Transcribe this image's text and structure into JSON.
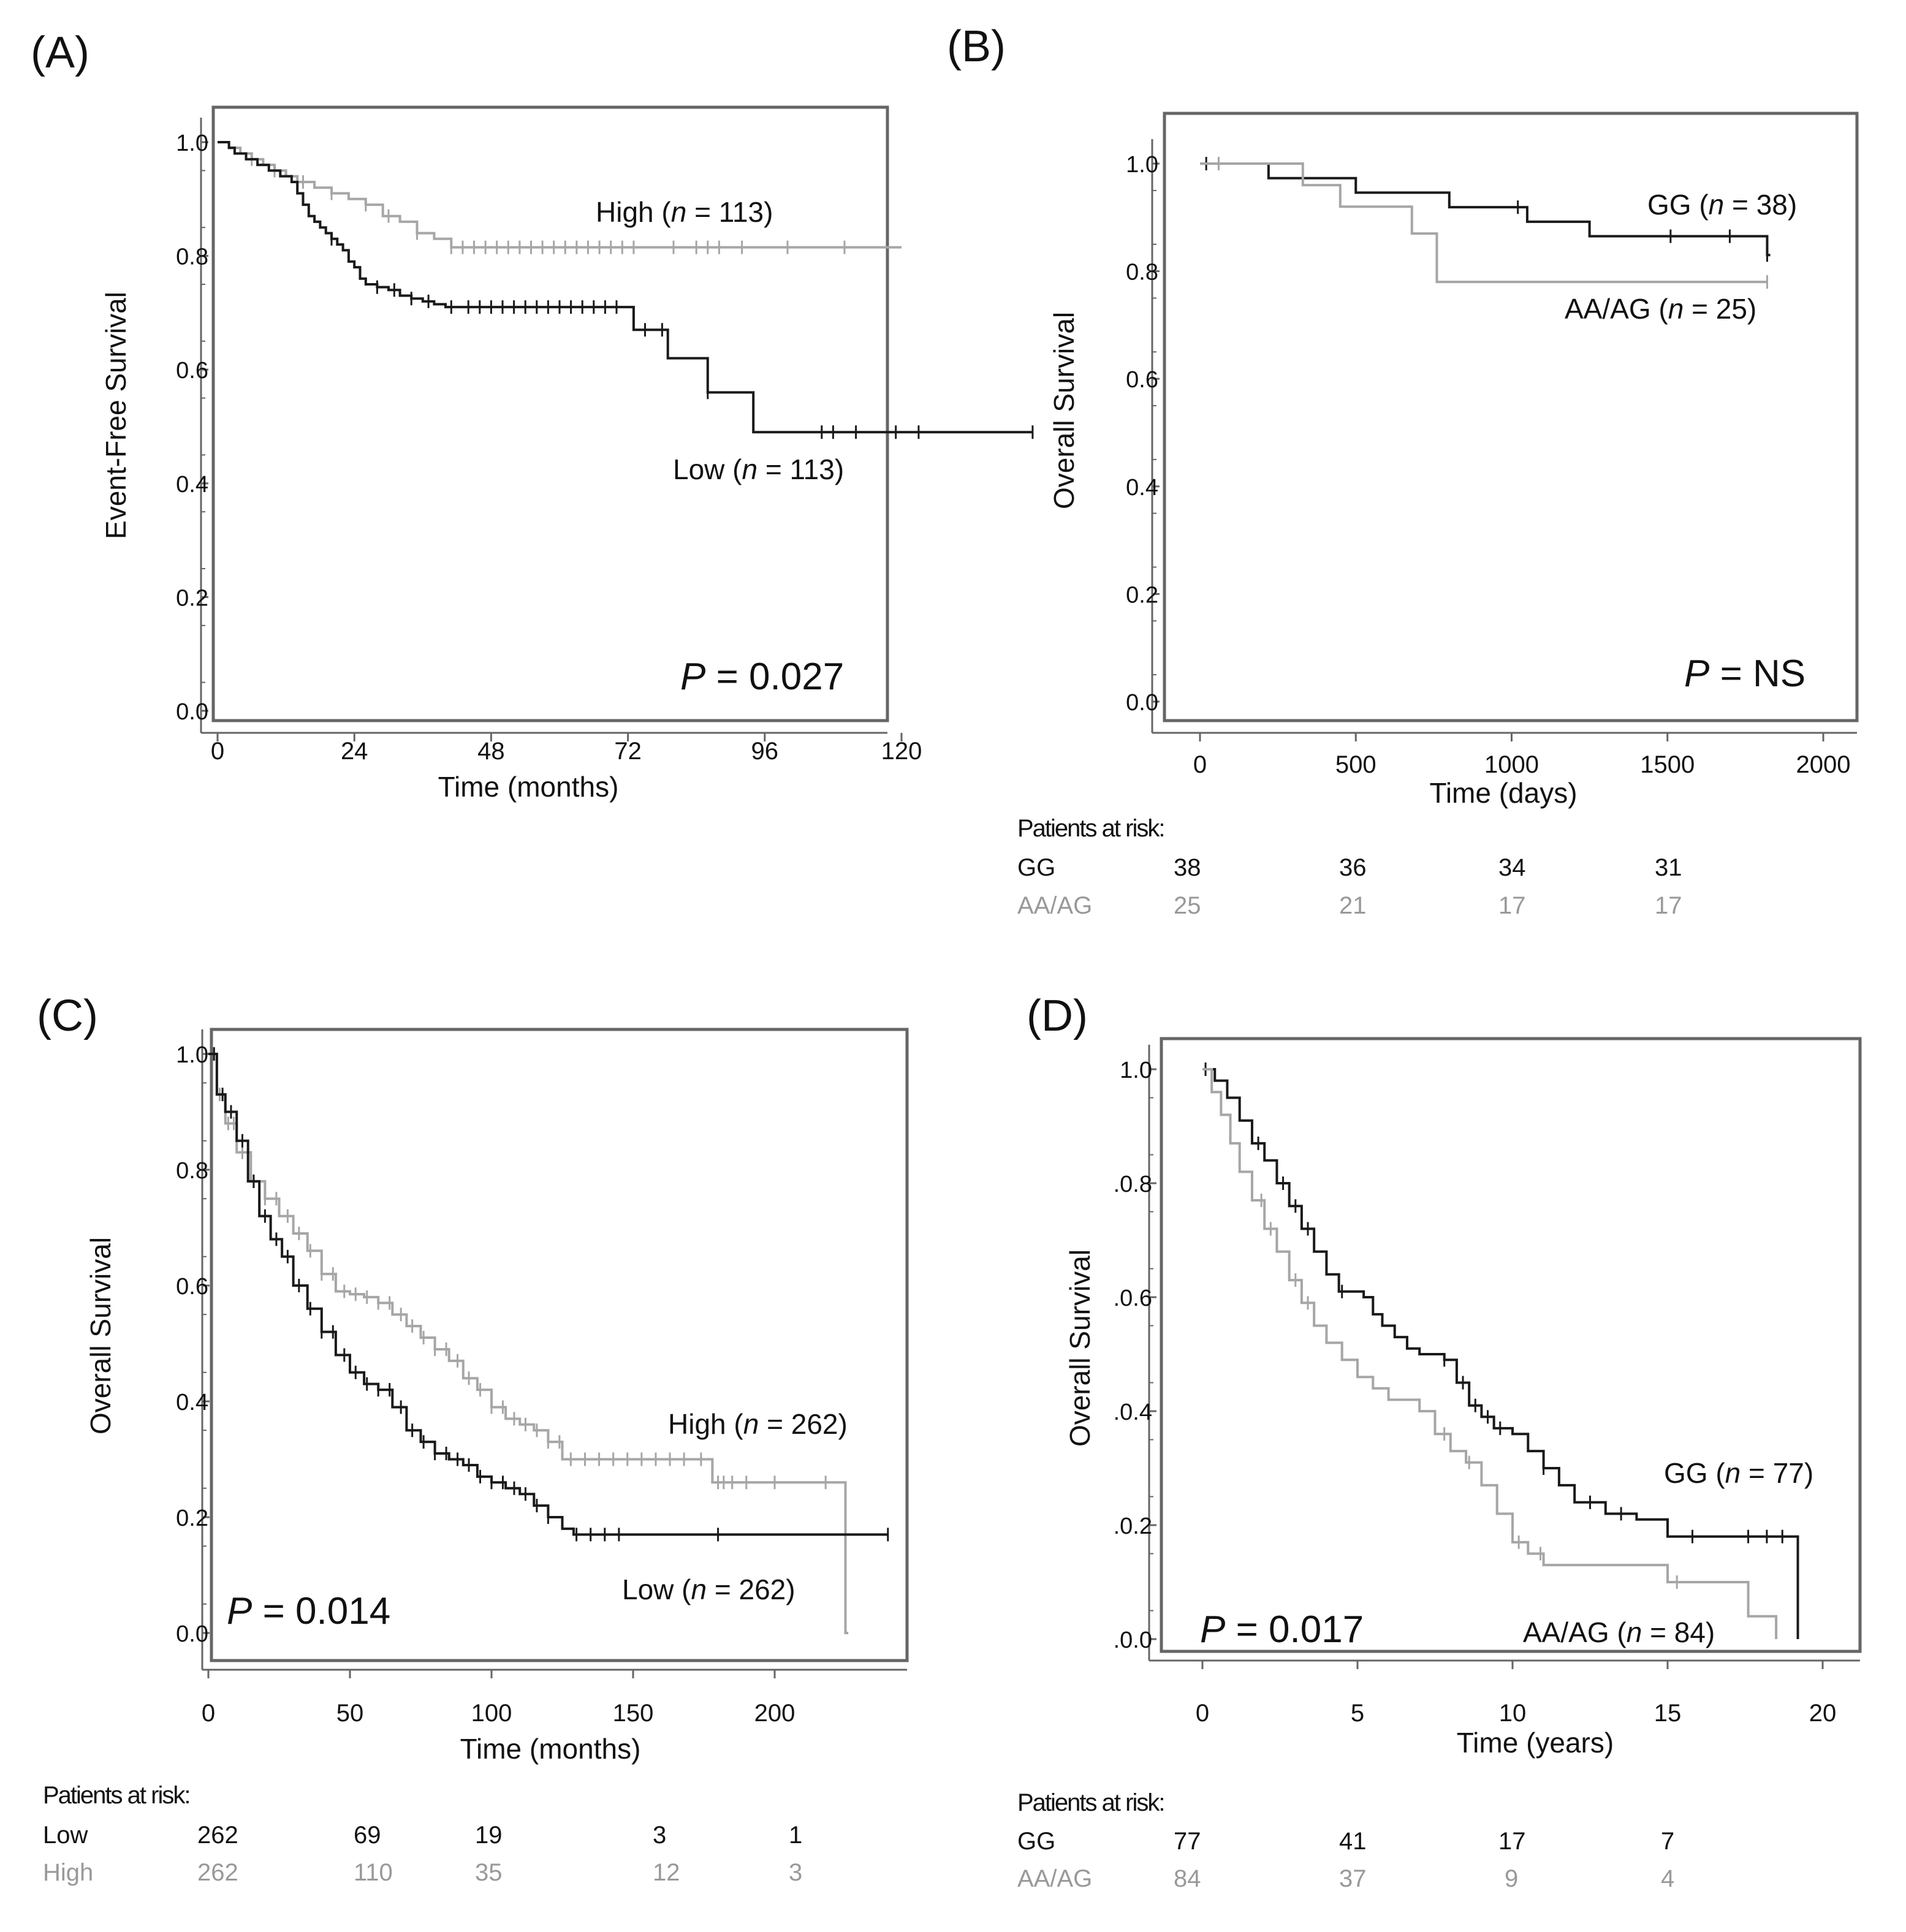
{
  "panels": [
    {
      "letter": "(A)",
      "ylabel": "Event-Free Survival",
      "xlabel": "Time (months)",
      "pvalue_prefix": "P",
      "pvalue_rest": " = 0.027",
      "xticks": [
        "0",
        "24",
        "48",
        "72",
        "96",
        "120"
      ],
      "yticks": [
        "0.0",
        "0.2",
        "0.4",
        "0.6",
        "0.8",
        "1.0"
      ],
      "series_labels": [
        {
          "group": "High",
          "n": "113"
        },
        {
          "group": "Low",
          "n": "113"
        }
      ]
    },
    {
      "letter": "(B)",
      "ylabel": "Overall Survival",
      "xlabel": "Time (days)",
      "pvalue_prefix": "P",
      "pvalue_rest": " = NS",
      "xticks": [
        "0",
        "500",
        "1000",
        "1500",
        "2000"
      ],
      "yticks": [
        "0.0",
        "0.2",
        "0.4",
        "0.6",
        "0.8",
        "1.0"
      ],
      "series_labels": [
        {
          "group": "GG",
          "n": "38"
        },
        {
          "group": "AA/AG",
          "n": "25"
        }
      ],
      "risk_title": "Patients at risk:",
      "risk_rows": [
        {
          "group": "GG",
          "values": [
            "38",
            "36",
            "34",
            "31"
          ]
        },
        {
          "group": "AA/AG",
          "values": [
            "25",
            "21",
            "17",
            "17"
          ]
        }
      ]
    },
    {
      "letter": "(C)",
      "ylabel": "Overall Survival",
      "xlabel": "Time (months)",
      "pvalue_prefix": "P",
      "pvalue_rest": " = 0.014",
      "xticks": [
        "0",
        "50",
        "100",
        "150",
        "200"
      ],
      "yticks": [
        "0.0",
        "0.2",
        "0.4",
        "0.6",
        "0.8",
        "1.0"
      ],
      "series_labels": [
        {
          "group": "High",
          "n": "262"
        },
        {
          "group": "Low",
          "n": "262"
        }
      ],
      "risk_title": "Patients at risk:",
      "risk_rows": [
        {
          "group": "Low",
          "values": [
            "262",
            "69",
            "19",
            "3",
            "1"
          ]
        },
        {
          "group": "High",
          "values": [
            "262",
            "110",
            "35",
            "12",
            "3"
          ]
        }
      ]
    },
    {
      "letter": "(D)",
      "ylabel": "Overall Survival",
      "xlabel": "Time (years)",
      "pvalue_prefix": "P",
      "pvalue_rest": " = 0.017",
      "xticks": [
        "0",
        "5",
        "10",
        "15",
        "20"
      ],
      "yticks": [
        ".0.0",
        ".0.2",
        ".0.4",
        ".0.6",
        ".0.8",
        "1.0"
      ],
      "series_labels": [
        {
          "group": "GG",
          "n": "77"
        },
        {
          "group": "AA/AG",
          "n": "84"
        }
      ],
      "risk_title": "Patients at risk:",
      "risk_rows": [
        {
          "group": "GG",
          "values": [
            "77",
            "41",
            "17",
            "7"
          ]
        },
        {
          "group": "AA/AG",
          "values": [
            "84",
            "37",
            "9",
            "4"
          ]
        }
      ]
    }
  ],
  "colors": {
    "dark": "#1a1a1a",
    "light": "#a6a6a6",
    "frame": "#666666"
  },
  "chart_data": [
    {
      "type": "line",
      "title": "",
      "xlabel": "Time (months)",
      "ylabel": "Event-Free Survival",
      "xlim": [
        0,
        144
      ],
      "ylim": [
        0,
        1
      ],
      "xticks": [
        0,
        24,
        48,
        72,
        96,
        120
      ],
      "yticks": [
        0,
        0.2,
        0.4,
        0.6,
        0.8,
        1.0
      ],
      "grid": false,
      "step": true,
      "series": [
        {
          "name": "High (n = 113)",
          "color": "light",
          "x": [
            0,
            2,
            4,
            6,
            8,
            10,
            12,
            14,
            17,
            20,
            23,
            26,
            29,
            32,
            35,
            38,
            41,
            120
          ],
          "y": [
            1.0,
            0.99,
            0.98,
            0.97,
            0.96,
            0.95,
            0.94,
            0.93,
            0.92,
            0.91,
            0.9,
            0.89,
            0.87,
            0.86,
            0.84,
            0.83,
            0.815,
            0.815
          ],
          "censor_x": [
            6,
            10,
            15,
            20,
            26,
            30,
            35,
            41,
            43,
            45,
            47,
            49,
            51,
            53,
            55,
            57,
            59,
            61,
            63,
            65,
            67,
            69,
            71,
            73,
            80,
            84,
            86,
            88,
            92,
            100,
            110
          ]
        },
        {
          "name": "Low (n = 113)",
          "color": "dark",
          "x": [
            0,
            2,
            3,
            5,
            7,
            9,
            11,
            13,
            14,
            15,
            16,
            17,
            18,
            19,
            20,
            21,
            22,
            23,
            24,
            25,
            26,
            28,
            30,
            32,
            34,
            36,
            38,
            40,
            73,
            79,
            81,
            86,
            94,
            143
          ],
          "y": [
            1.0,
            0.99,
            0.98,
            0.97,
            0.96,
            0.95,
            0.94,
            0.93,
            0.91,
            0.89,
            0.87,
            0.86,
            0.85,
            0.84,
            0.83,
            0.82,
            0.81,
            0.79,
            0.78,
            0.76,
            0.75,
            0.745,
            0.74,
            0.73,
            0.725,
            0.72,
            0.715,
            0.71,
            0.67,
            0.62,
            0.62,
            0.56,
            0.49,
            0.49
          ],
          "censor_x": [
            20,
            28,
            31,
            34,
            37,
            41,
            44,
            46,
            48,
            50,
            52,
            54,
            56,
            58,
            60,
            62,
            64,
            66,
            68,
            70,
            75,
            78,
            86,
            106,
            108,
            112,
            119,
            123,
            143
          ]
        }
      ]
    },
    {
      "type": "line",
      "title": "",
      "xlabel": "Time (days)",
      "ylabel": "Overall Survival",
      "xlim": [
        -130,
        2130
      ],
      "ylim": [
        0,
        1
      ],
      "xticks": [
        0,
        500,
        1000,
        1500,
        2000
      ],
      "yticks": [
        0,
        0.2,
        0.4,
        0.6,
        0.8,
        1.0
      ],
      "grid": false,
      "step": true,
      "series": [
        {
          "name": "GG (n = 38)",
          "color": "dark",
          "x": [
            0,
            220,
            500,
            800,
            1050,
            1250,
            1820,
            1830
          ],
          "y": [
            1.0,
            0.973,
            0.946,
            0.919,
            0.892,
            0.865,
            0.83,
            0.83
          ],
          "censor_x": [
            20,
            1020,
            1510,
            1700,
            1820
          ]
        },
        {
          "name": "AA/AG (n = 25)",
          "color": "light",
          "x": [
            0,
            330,
            450,
            680,
            760,
            1820
          ],
          "y": [
            1.0,
            0.96,
            0.92,
            0.87,
            0.78,
            0.78
          ],
          "censor_x": [
            60,
            1820
          ]
        }
      ]
    },
    {
      "type": "line",
      "title": "",
      "xlabel": "Time (months)",
      "ylabel": "Overall Survival",
      "xlim": [
        -2,
        248
      ],
      "ylim": [
        0,
        1
      ],
      "xticks": [
        0,
        50,
        100,
        150,
        200
      ],
      "yticks": [
        0,
        0.2,
        0.4,
        0.6,
        0.8,
        1.0
      ],
      "grid": false,
      "step": true,
      "series": [
        {
          "name": "High (n = 262)",
          "color": "light",
          "x": [
            0,
            3,
            6,
            10,
            15,
            20,
            25,
            30,
            35,
            40,
            45,
            50,
            55,
            60,
            65,
            70,
            75,
            80,
            85,
            90,
            95,
            100,
            105,
            110,
            115,
            120,
            125,
            178,
            225,
            226
          ],
          "y": [
            1.0,
            0.93,
            0.88,
            0.83,
            0.78,
            0.75,
            0.72,
            0.69,
            0.66,
            0.62,
            0.59,
            0.585,
            0.58,
            0.57,
            0.55,
            0.53,
            0.51,
            0.49,
            0.47,
            0.44,
            0.42,
            0.39,
            0.37,
            0.36,
            0.35,
            0.33,
            0.3,
            0.26,
            0.0,
            0.0
          ],
          "censor_x": [
            2,
            4,
            7,
            9,
            12,
            16,
            20,
            24,
            28,
            32,
            36,
            40,
            44,
            48,
            52,
            56,
            60,
            64,
            68,
            72,
            76,
            80,
            84,
            88,
            92,
            96,
            100,
            104,
            108,
            112,
            116,
            120,
            124,
            128,
            133,
            138,
            143,
            148,
            153,
            158,
            163,
            168,
            174,
            180,
            182,
            185,
            190,
            200,
            218
          ]
        },
        {
          "name": "Low (n = 262)",
          "color": "dark",
          "x": [
            0,
            3,
            6,
            10,
            14,
            18,
            22,
            26,
            30,
            35,
            40,
            45,
            50,
            55,
            60,
            65,
            70,
            75,
            80,
            85,
            90,
            95,
            100,
            105,
            110,
            115,
            120,
            125,
            129,
            240
          ],
          "y": [
            1.0,
            0.93,
            0.9,
            0.85,
            0.78,
            0.72,
            0.68,
            0.65,
            0.6,
            0.56,
            0.52,
            0.48,
            0.45,
            0.43,
            0.42,
            0.39,
            0.35,
            0.33,
            0.31,
            0.3,
            0.29,
            0.27,
            0.26,
            0.25,
            0.24,
            0.22,
            0.2,
            0.18,
            0.17,
            0.17
          ],
          "censor_x": [
            2,
            5,
            8,
            12,
            16,
            20,
            24,
            28,
            32,
            36,
            40,
            44,
            48,
            52,
            56,
            60,
            64,
            68,
            72,
            76,
            80,
            84,
            88,
            92,
            96,
            100,
            104,
            108,
            112,
            116,
            120,
            130,
            135,
            140,
            145,
            180,
            240
          ]
        }
      ]
    },
    {
      "type": "line",
      "title": "",
      "xlabel": "Time (years)",
      "ylabel": "Overall Survival",
      "xlim": [
        -1.4,
        21.0
      ],
      "ylim": [
        0,
        1
      ],
      "xticks": [
        0,
        5,
        10,
        15,
        20
      ],
      "yticks": [
        0,
        0.2,
        0.4,
        0.6,
        0.8,
        1.0
      ],
      "grid": false,
      "step": true,
      "series": [
        {
          "name": "GG (n = 77)",
          "color": "dark",
          "x": [
            0,
            0.4,
            0.8,
            1.2,
            1.6,
            2.0,
            2.4,
            2.8,
            3.2,
            3.6,
            4.0,
            4.4,
            4.8,
            5.2,
            5.5,
            5.8,
            6.2,
            6.6,
            7.0,
            7.4,
            7.8,
            8.2,
            8.6,
            9.0,
            9.4,
            10.0,
            10.5,
            11.0,
            11.5,
            12.0,
            13.0,
            14.0,
            15.0,
            18.0,
            19.1,
            19.2
          ],
          "y": [
            1.0,
            0.98,
            0.95,
            0.91,
            0.87,
            0.84,
            0.8,
            0.76,
            0.72,
            0.68,
            0.64,
            0.61,
            0.61,
            0.6,
            0.57,
            0.55,
            0.53,
            0.51,
            0.5,
            0.5,
            0.49,
            0.45,
            0.41,
            0.39,
            0.37,
            0.36,
            0.33,
            0.3,
            0.27,
            0.24,
            0.22,
            0.21,
            0.18,
            0.18,
            0.18,
            0.0
          ],
          "censor_x": [
            0.1,
            1.8,
            2.6,
            3.0,
            3.4,
            4.5,
            7.8,
            8.4,
            8.8,
            9.2,
            9.6,
            11.0,
            12.5,
            13.5,
            15.8,
            17.6,
            18.2,
            18.7
          ]
        },
        {
          "name": "AA/AG (n = 84)",
          "color": "light",
          "x": [
            0,
            0.3,
            0.6,
            0.9,
            1.2,
            1.6,
            2.0,
            2.4,
            2.8,
            3.2,
            3.6,
            4.0,
            4.5,
            5.0,
            5.5,
            6.0,
            6.5,
            7.0,
            7.5,
            8.0,
            8.5,
            9.0,
            9.5,
            10.0,
            10.5,
            11.0,
            15.0,
            17.6,
            18.5
          ],
          "y": [
            1.0,
            0.96,
            0.92,
            0.87,
            0.82,
            0.77,
            0.72,
            0.68,
            0.63,
            0.59,
            0.55,
            0.52,
            0.49,
            0.46,
            0.44,
            0.42,
            0.42,
            0.4,
            0.36,
            0.33,
            0.31,
            0.27,
            0.22,
            0.17,
            0.15,
            0.13,
            0.1,
            0.04,
            0.0
          ],
          "censor_x": [
            1.9,
            2.2,
            3.0,
            3.4,
            7.8,
            8.6,
            10.2,
            10.9,
            15.3
          ]
        }
      ]
    }
  ]
}
